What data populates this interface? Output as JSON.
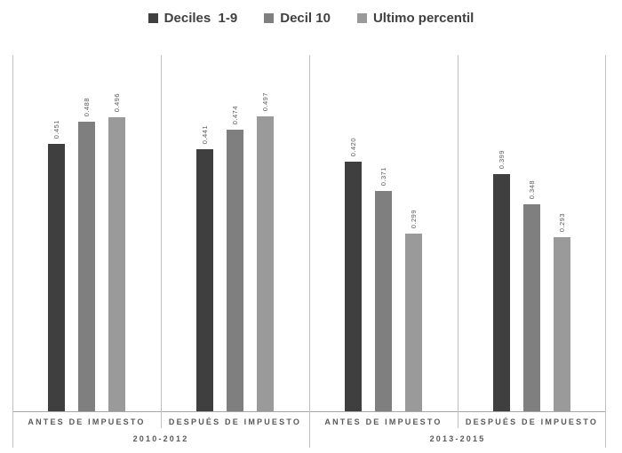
{
  "chart_data": {
    "type": "bar",
    "title": "",
    "legend_position": "top",
    "grid": false,
    "value_labels": true,
    "value_label_decimals": 3,
    "ylim": [
      0,
      0.6
    ],
    "series": [
      {
        "name": "Deciles  1-9",
        "color": "#3f3f3f",
        "values": [
          0.451,
          0.441,
          0.42,
          0.399
        ]
      },
      {
        "name": "Decil 10",
        "color": "#7f7f7f",
        "values": [
          0.488,
          0.474,
          0.371,
          0.348
        ]
      },
      {
        "name": "Ultimo percentil",
        "color": "#9a9a9a",
        "values": [
          0.496,
          0.497,
          0.299,
          0.293
        ]
      }
    ],
    "categories": [
      "ANTES DE IMPUESTO",
      "DESPUÉS DE IMPUESTO",
      "ANTES DE IMPUESTO",
      "DESPUÉS DE IMPUESTO"
    ],
    "category_groups": [
      "2010-2012",
      "2013-2015"
    ]
  },
  "colors": {
    "background": "#ffffff",
    "separator_line": "#bfbfbf",
    "baseline": "#a6a6a6",
    "axis_text": "#595959",
    "legend_text": "#404040",
    "value_text": "#595959"
  }
}
